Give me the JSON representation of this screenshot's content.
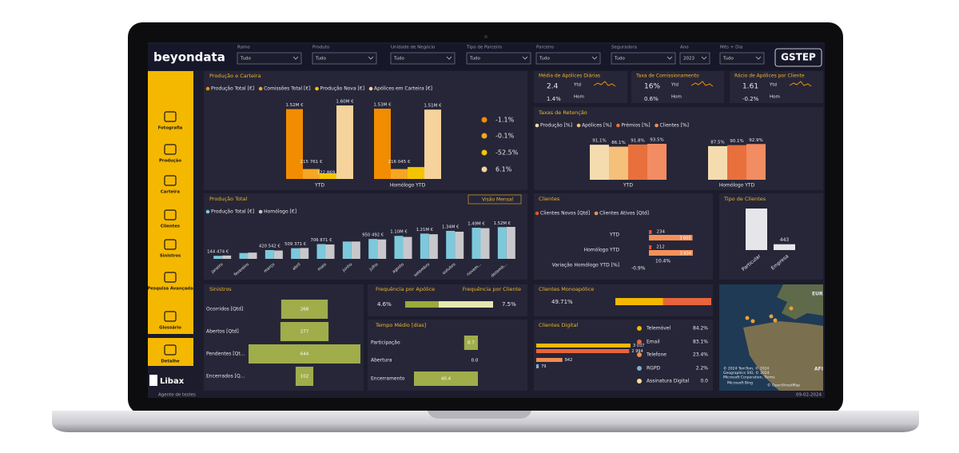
{
  "header": {
    "logo": "beyondata",
    "brand": "GSTEP",
    "filters": [
      {
        "label": "Ramo",
        "value": "Tudo"
      },
      {
        "label": "Produto",
        "value": "Tudo"
      },
      {
        "label": "Unidade de Negócio",
        "value": "Tudo"
      },
      {
        "label": "Tipo de Parceiro",
        "value": "Tudo"
      },
      {
        "label": "Parceiro",
        "value": "Tudo"
      },
      {
        "label": "Seguradora",
        "value": "Tudo"
      },
      {
        "label": "Ano",
        "value": "2023"
      },
      {
        "label": "Mês + Dia",
        "value": "Tudo"
      }
    ]
  },
  "sidebar": {
    "items": [
      "Fotografia",
      "Produção",
      "Carteira",
      "Clientes",
      "Sinistros",
      "Pesquisa Avançada",
      "Glossário",
      "Detalhe"
    ],
    "company": "Libax",
    "user": "Agente de testes",
    "date": "09-02-2024"
  },
  "producao_carteira": {
    "type": "bar",
    "title": "Produção e Carteira",
    "categories": [
      "YTD",
      "Homólogo YTD"
    ],
    "series": [
      {
        "name": "Produção Total [€]",
        "color": "#f28c00",
        "values": [
          1520000,
          1530000
        ],
        "value_labels": [
          "1.52M €",
          "1.53M €"
        ]
      },
      {
        "name": "Comissões Total [€]",
        "color": "#f5a623",
        "values": [
          215761,
          216045
        ],
        "value_labels": [
          "215 761 €",
          "216 045 €"
        ]
      },
      {
        "name": "Produção Nova [€]",
        "color": "#f5c400",
        "values": [
          122869,
          258700
        ],
        "value_labels": [
          "122 869 €",
          null
        ]
      },
      {
        "name": "Apólices em Carteira [€]",
        "color": "#f5d39a",
        "values": [
          1600000,
          1510000
        ],
        "value_labels": [
          "1.60M €",
          "1.51M €"
        ]
      }
    ],
    "variations": [
      "-1.1%",
      "-0.1%",
      "-52.5%",
      "6.1%"
    ]
  },
  "kpis": {
    "ytd_label": "Ytd",
    "hom_label": "Hom",
    "cards": [
      {
        "title": "Média de Apólices Diárias",
        "ytd": "2.4",
        "hom": "1.4%"
      },
      {
        "title": "Taxa de Comissionamento",
        "ytd": "16%",
        "hom": "0.6%"
      },
      {
        "title": "Rácio de Apólices por Cliente",
        "ytd": "1.61",
        "hom": "-0.2%"
      }
    ]
  },
  "retencao": {
    "type": "bar",
    "title": "Taxas de Retenção",
    "categories": [
      "YTD",
      "Homólogo YTD"
    ],
    "series": [
      {
        "name": "Produção [%]",
        "color": "#f5dcae",
        "values": [
          91.1,
          87.5
        ],
        "value_labels": [
          "91.1%",
          "87.5%"
        ]
      },
      {
        "name": "Apólices [%]",
        "color": "#f5c07a",
        "values": [
          86.1,
          null
        ],
        "value_labels": [
          "86.1%",
          null
        ]
      },
      {
        "name": "Prémios [%]",
        "color": "#e8703c",
        "values": [
          91.8,
          90.1
        ],
        "value_labels": [
          "91.8%",
          "90.1%"
        ]
      },
      {
        "name": "Clientes [%]",
        "color": "#f28c62",
        "values": [
          93.5,
          92.9
        ],
        "value_labels": [
          "93.5%",
          "92.9%"
        ]
      }
    ]
  },
  "producao_total": {
    "type": "bar",
    "title": "Produção Total",
    "button": "Visão Mensal",
    "categories": [
      "janeiro",
      "fevereiro",
      "março",
      "abril",
      "maio",
      "junho",
      "julho",
      "agosto",
      "setembro",
      "outubro",
      "novem...",
      "dezemb..."
    ],
    "series": [
      {
        "name": "Produção Total [€]",
        "color": "#7ec8dc",
        "values": [
          144474,
          280000,
          420542,
          509371,
          706871,
          830000,
          950492,
          1100000,
          1210000,
          1340000,
          1490000,
          1520000
        ],
        "value_labels": [
          "144 474 €",
          null,
          "420 542 €",
          "509 371 €",
          "706 871 €",
          null,
          "950 492 €",
          "1.10M €",
          "1.21M €",
          "1.34M €",
          "1.49M €",
          "1.52M €"
        ]
      },
      {
        "name": "Homólogo [€]",
        "color": "#c8c8cc",
        "values": [
          160000,
          300000,
          400000,
          520000,
          690000,
          830000,
          930000,
          1050000,
          1180000,
          1300000,
          1470000,
          1530000
        ]
      }
    ]
  },
  "clientes": {
    "type": "bar",
    "title": "Clientes",
    "categories": [
      "YTD",
      "Homólogo YTD"
    ],
    "series": [
      {
        "name": "Clientes Novos [Qtd]",
        "color": "#e0542c",
        "values": [
          234,
          212
        ]
      },
      {
        "name": "Clientes Ativos [Qtd]",
        "color": "#f5905a",
        "values": [
          3605,
          3634
        ],
        "value_labels": [
          "3 605",
          "3 634"
        ]
      }
    ],
    "variation": {
      "label": "Variação Homólogo YTD [%]",
      "values": [
        "-0.9%",
        "10.4%"
      ]
    }
  },
  "tipo_clientes": {
    "type": "bar",
    "title": "Tipo de Clientes",
    "categories": [
      "Particular",
      "Empresa"
    ],
    "values": [
      3162,
      443
    ],
    "value_labels": [
      null,
      "443"
    ],
    "color": "#e6e6ea"
  },
  "sinistros": {
    "type": "funnel",
    "title": "Sinistros",
    "categories": [
      "Ocorridos [Qtd]",
      "Abertos [Qtd]",
      "Pendentes [Qt...",
      "Encerrados [Q..."
    ],
    "values": [
      268,
      277,
      644,
      102
    ],
    "color": "#a0ad4a"
  },
  "frequencia": {
    "titles": [
      "Frequência por Apólice",
      "Frequência por Cliente"
    ],
    "values": [
      4.6,
      7.5
    ],
    "value_labels": [
      "4.6%",
      "7.5%"
    ],
    "colors": [
      "#9aab3c",
      "#e5e8b0"
    ]
  },
  "tempo_medio": {
    "type": "bar",
    "title": "Tempo Médio [dias]",
    "categories": [
      "Participação",
      "Abertura",
      "Encerramento"
    ],
    "values": [
      8.7,
      0.0,
      40.4
    ],
    "value_labels": [
      "8.7",
      "0.0",
      "40.4"
    ],
    "color": "#a0ad4a"
  },
  "monoapolice": {
    "title": "Clientes Monoapólice",
    "value": 49.71,
    "value_label": "49.71%",
    "color": "#f5b800"
  },
  "digital": {
    "type": "bar",
    "title": "Clientes Digital",
    "values": [
      3037,
      2994,
      842,
      79
    ],
    "value_labels": [
      "3 037",
      "2 994",
      "842",
      "79"
    ],
    "colors": [
      "#f5b800",
      "#e8643c",
      "#f08c50",
      "#7ab0d0"
    ],
    "legend": [
      {
        "name": "Telemóvel",
        "color": "#f5b800",
        "value": 84.2,
        "label": "84.2%"
      },
      {
        "name": "Email",
        "color": "#e8643c",
        "value": 83.1,
        "label": "83.1%"
      },
      {
        "name": "Telefone",
        "color": "#f08c50",
        "value": 23.4,
        "label": "23.4%"
      },
      {
        "name": "RGPD",
        "color": "#7ab0d0",
        "value": 2.2,
        "label": "2.2%"
      },
      {
        "name": "Assinatura Digital",
        "color": "#f5e0a0",
        "value": 0.0,
        "label": "0.0"
      }
    ]
  },
  "map": {
    "labels": [
      "EUR",
      "AFI"
    ],
    "attribution": [
      "© 2024 TomTom, © 2024",
      "Geographics SIO, © 2024",
      "Microsoft Corporation, Terms"
    ],
    "bing": "Microsoft Bing",
    "osm": "© OpenStreetMap"
  }
}
